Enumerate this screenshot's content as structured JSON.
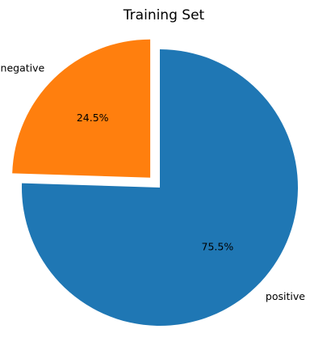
{
  "chart_data": {
    "type": "pie",
    "title": "Training Set",
    "categories": [
      "positive",
      "negative"
    ],
    "values": [
      75.5,
      24.5
    ],
    "percent_labels": [
      "75.5%",
      "24.5%"
    ],
    "colors": [
      "#1f77b4",
      "#ff7f0e"
    ],
    "explode": [
      0,
      0.1
    ],
    "start_angle_deg": 90,
    "direction": "clockwise"
  }
}
